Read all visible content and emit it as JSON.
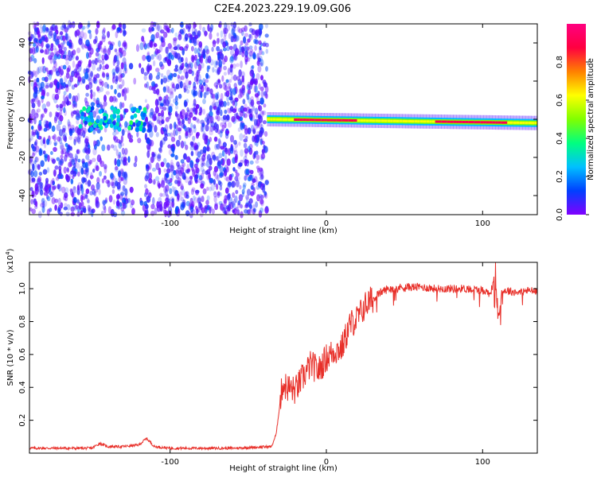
{
  "title": "C2E4.2023.229.19.09.G06",
  "chart_data": [
    {
      "type": "heatmap",
      "xlabel": "Height of straight line (km)",
      "ylabel": "Frequency (Hz)",
      "xlim": [
        -190,
        135
      ],
      "ylim": [
        -50,
        50
      ],
      "xticks": [
        -100,
        0,
        100
      ],
      "yticks": [
        -40,
        -20,
        0,
        20,
        40
      ],
      "colorbar": {
        "label": "Normalized spectral amplitude",
        "range": [
          0,
          1
        ],
        "ticks": [
          0.0,
          0.2,
          0.4,
          0.6,
          0.8
        ],
        "colormap": [
          "#8000ff",
          "#0040ff",
          "#00c0ff",
          "#00ff80",
          "#80ff00",
          "#ffff00",
          "#ff8000",
          "#ff0040",
          "#ff0080"
        ]
      },
      "features": [
        {
          "kind": "noise",
          "x_range": [
            -190,
            -38
          ],
          "amplitude": 0.1
        },
        {
          "kind": "burst",
          "x_range": [
            -158,
            -116
          ],
          "freq": 0,
          "amplitude": 0.35
        },
        {
          "kind": "carrier",
          "x_range": [
            -38,
            135
          ],
          "freq_start": 0,
          "freq_end": -2,
          "amplitude": 0.9
        }
      ]
    },
    {
      "type": "line",
      "xlabel": "Height of straight line (km)",
      "ylabel": "SNR (10 * v/v)",
      "y_multiplier": "(x10",
      "y_multiplier_exp": "4",
      "y_multiplier_close": ")",
      "xlim": [
        -190,
        135
      ],
      "ylim": [
        0,
        1.16
      ],
      "xticks": [
        -100,
        0,
        100
      ],
      "yticks": [
        0.2,
        0.4,
        0.6,
        0.8,
        1.0
      ],
      "color": "#e8302a",
      "series": [
        {
          "x": [
            -190,
            -150,
            -145,
            -140,
            -130,
            -120,
            -115,
            -110,
            -100,
            -60,
            -35,
            -32,
            -30,
            -28,
            -25,
            -20,
            -15,
            -10,
            -5,
            0,
            5,
            10,
            15,
            20,
            25,
            30,
            35,
            40,
            50,
            60,
            70,
            80,
            90,
            100,
            105,
            108,
            110,
            112,
            115,
            120,
            125,
            130,
            135
          ],
          "y": [
            0.03,
            0.03,
            0.06,
            0.04,
            0.04,
            0.05,
            0.09,
            0.04,
            0.03,
            0.03,
            0.04,
            0.12,
            0.28,
            0.42,
            0.4,
            0.38,
            0.46,
            0.54,
            0.5,
            0.58,
            0.62,
            0.64,
            0.78,
            0.82,
            0.9,
            0.94,
            0.98,
            1.0,
            1.01,
            1.01,
            1.0,
            1.0,
            1.0,
            0.99,
            0.97,
            1.08,
            0.8,
            0.98,
            0.99,
            0.98,
            0.98,
            0.99,
            0.98
          ]
        }
      ]
    }
  ]
}
